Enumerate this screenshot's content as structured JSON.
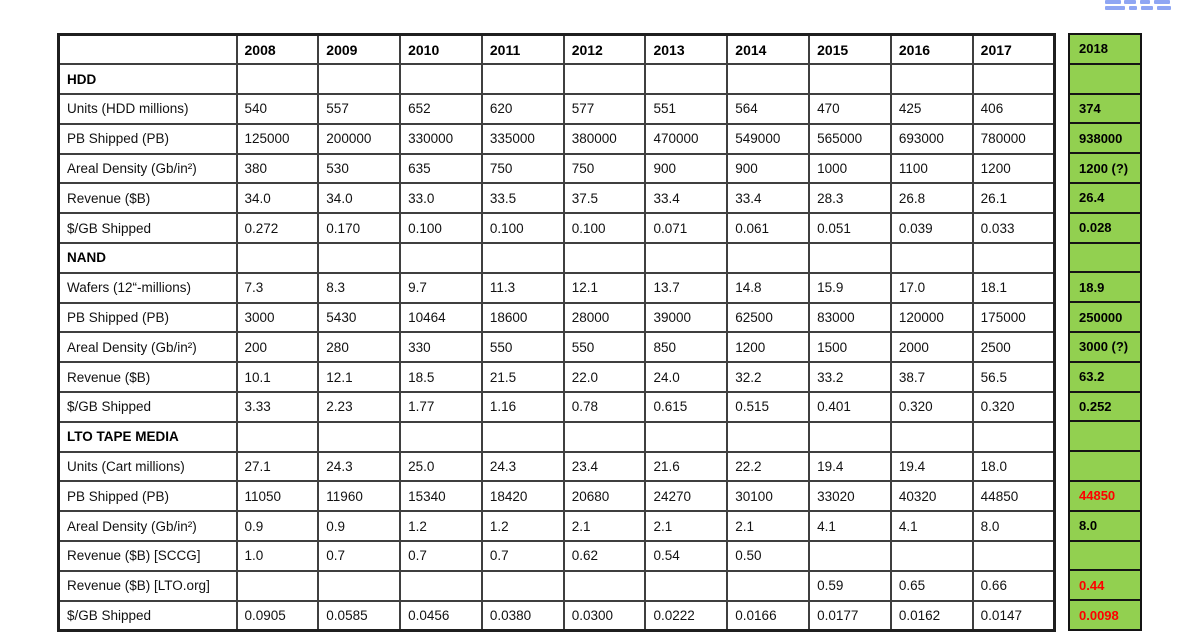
{
  "colors": {
    "forecast_green": "#92d050",
    "alert_red": "#ff0000",
    "grid_border": "#3f3f3f",
    "outer_border": "#1f1f1f",
    "logo_blue": "#8fa6f3"
  },
  "header": {
    "year_columns": [
      "2008",
      "2009",
      "2010",
      "2011",
      "2012",
      "2013",
      "2014",
      "2015",
      "2016",
      "2017"
    ],
    "extra_year": "2018"
  },
  "rows": [
    {
      "type": "section",
      "label": "HDD",
      "values": [
        "",
        "",
        "",
        "",
        "",
        "",
        "",
        "",
        "",
        ""
      ],
      "extra": "",
      "extra_red": false
    },
    {
      "type": "data",
      "label": "Units (HDD millions)",
      "values": [
        "540",
        "557",
        "652",
        "620",
        "577",
        "551",
        "564",
        "470",
        "425",
        "406"
      ],
      "extra": "374",
      "extra_red": false
    },
    {
      "type": "data",
      "label": "PB Shipped (PB)",
      "values": [
        "125000",
        "200000",
        "330000",
        "335000",
        "380000",
        "470000",
        "549000",
        "565000",
        "693000",
        "780000"
      ],
      "extra": "938000",
      "extra_red": false
    },
    {
      "type": "data",
      "label": "Areal Density (Gb/in²)",
      "values": [
        "380",
        "530",
        "635",
        "750",
        "750",
        "900",
        "900",
        "1000",
        "1100",
        "1200"
      ],
      "extra": "1200 (?)",
      "extra_red": false
    },
    {
      "type": "data",
      "label": "Revenue ($B)",
      "values": [
        "34.0",
        "34.0",
        "33.0",
        "33.5",
        "37.5",
        "33.4",
        "33.4",
        "28.3",
        "26.8",
        "26.1"
      ],
      "extra": "26.4",
      "extra_red": false
    },
    {
      "type": "data",
      "label": "$/GB Shipped",
      "values": [
        "0.272",
        "0.170",
        "0.100",
        "0.100",
        "0.100",
        "0.071",
        "0.061",
        "0.051",
        "0.039",
        "0.033"
      ],
      "extra": "0.028",
      "extra_red": false
    },
    {
      "type": "section",
      "label": "NAND",
      "values": [
        "",
        "",
        "",
        "",
        "",
        "",
        "",
        "",
        "",
        ""
      ],
      "extra": "",
      "extra_red": false
    },
    {
      "type": "data",
      "label": "Wafers (12“-millions)",
      "values": [
        "7.3",
        "8.3",
        "9.7",
        "11.3",
        "12.1",
        "13.7",
        "14.8",
        "15.9",
        "17.0",
        "18.1"
      ],
      "extra": "18.9",
      "extra_red": false
    },
    {
      "type": "data",
      "label": "PB Shipped (PB)",
      "values": [
        "3000",
        "5430",
        "10464",
        "18600",
        "28000",
        "39000",
        "62500",
        "83000",
        "120000",
        "175000"
      ],
      "extra": "250000",
      "extra_red": false
    },
    {
      "type": "data",
      "label": "Areal Density (Gb/in²)",
      "values": [
        "200",
        "280",
        "330",
        "550",
        "550",
        "850",
        "1200",
        "1500",
        "2000",
        "2500"
      ],
      "extra": "3000 (?)",
      "extra_red": false
    },
    {
      "type": "data",
      "label": "Revenue ($B)",
      "values": [
        "10.1",
        "12.1",
        "18.5",
        "21.5",
        "22.0",
        "24.0",
        "32.2",
        "33.2",
        "38.7",
        "56.5"
      ],
      "extra": "63.2",
      "extra_red": false
    },
    {
      "type": "data",
      "label": "$/GB Shipped",
      "values": [
        "3.33",
        "2.23",
        "1.77",
        "1.16",
        "0.78",
        "0.615",
        "0.515",
        "0.401",
        "0.320",
        "0.320"
      ],
      "extra": "0.252",
      "extra_red": false
    },
    {
      "type": "section",
      "label": "LTO TAPE MEDIA",
      "values": [
        "",
        "",
        "",
        "",
        "",
        "",
        "",
        "",
        "",
        ""
      ],
      "extra": "",
      "extra_red": false
    },
    {
      "type": "data",
      "label": "Units (Cart millions)",
      "values": [
        "27.1",
        "24.3",
        "25.0",
        "24.3",
        "23.4",
        "21.6",
        "22.2",
        "19.4",
        "19.4",
        "18.0"
      ],
      "extra": "",
      "extra_red": false
    },
    {
      "type": "data",
      "label": "PB Shipped (PB)",
      "values": [
        "11050",
        "11960",
        "15340",
        "18420",
        "20680",
        "24270",
        "30100",
        "33020",
        "40320",
        "44850"
      ],
      "extra": "44850",
      "extra_red": true
    },
    {
      "type": "data",
      "label": "Areal Density (Gb/in²)",
      "values": [
        "0.9",
        "0.9",
        "1.2",
        "1.2",
        "2.1",
        "2.1",
        "2.1",
        "4.1",
        "4.1",
        "8.0"
      ],
      "extra": "8.0",
      "extra_red": false
    },
    {
      "type": "data",
      "label": "Revenue ($B) [SCCG]",
      "values": [
        "1.0",
        "0.7",
        "0.7",
        "0.7",
        "0.62",
        "0.54",
        "0.50",
        "",
        "",
        ""
      ],
      "extra": "",
      "extra_red": false
    },
    {
      "type": "data",
      "label": "Revenue ($B) [LTO.org]",
      "values": [
        "",
        "",
        "",
        "",
        "",
        "",
        "",
        "0.59",
        "0.65",
        "0.66"
      ],
      "extra": "0.44",
      "extra_red": true
    },
    {
      "type": "data",
      "label": "$/GB Shipped",
      "values": [
        "0.0905",
        "0.0585",
        "0.0456",
        "0.0380",
        "0.0300",
        "0.0222",
        "0.0166",
        "0.0177",
        "0.0162",
        "0.0147"
      ],
      "extra": "0.0098",
      "extra_red": true
    }
  ]
}
